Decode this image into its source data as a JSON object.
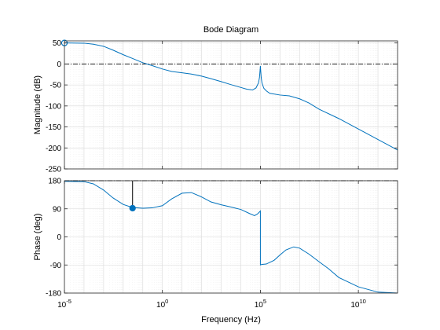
{
  "chart_data": {
    "type": "line",
    "title": "Bode Diagram",
    "xlabel": "Frequency  (Hz)",
    "x_scale": "log",
    "xlim": [
      1e-05,
      1000000000000.0
    ],
    "x_ticks": [
      {
        "value": 1e-05,
        "base": "10",
        "exp": "-5"
      },
      {
        "value": 1,
        "base": "10",
        "exp": "0"
      },
      {
        "value": 100000,
        "base": "10",
        "exp": "5"
      },
      {
        "value": 10000000000,
        "base": "10",
        "exp": "10"
      }
    ],
    "grid": true,
    "color": "#0072BD",
    "magnitude": {
      "ylabel": "Magnitude (dB)",
      "ylim": [
        -250,
        55
      ],
      "y_ticks": [
        "50",
        "0",
        "-50",
        "-100",
        "-150",
        "-200",
        "-250"
      ],
      "y_tick_values": [
        50,
        0,
        -50,
        -100,
        -150,
        -200,
        -250
      ],
      "reference_line": 0,
      "marker": {
        "x": 1e-05,
        "y": 50
      },
      "series": {
        "x": [
          1e-05,
          0.0001,
          0.0003,
          0.001,
          0.003,
          0.01,
          0.03,
          0.1,
          0.3,
          1,
          3,
          10,
          30,
          100,
          300,
          1000,
          3000,
          10000,
          20000,
          40000,
          60000,
          80000,
          90000,
          100000,
          110000,
          120000,
          150000,
          200000,
          300000,
          1000000,
          3000000,
          10000000,
          30000000,
          100000000,
          1000000000,
          10000000000,
          100000000000,
          1000000000000
        ],
        "y": [
          50,
          49.5,
          47,
          42,
          33,
          22,
          13,
          3,
          -4,
          -12,
          -18,
          -21,
          -24,
          -29,
          -35,
          -42,
          -49,
          -56,
          -60,
          -62,
          -57,
          -45,
          -32,
          -5,
          -32,
          -45,
          -58,
          -64,
          -70,
          -74,
          -76,
          -83,
          -93,
          -108,
          -130,
          -155,
          -180,
          -205
        ]
      }
    },
    "phase": {
      "ylabel": "Phase (deg)",
      "ylim": [
        -180,
        180
      ],
      "y_ticks": [
        "180",
        "90",
        "0",
        "-90",
        "-180"
      ],
      "y_tick_values": [
        180,
        90,
        0,
        -90,
        -180
      ],
      "reference_line": 180,
      "marker": {
        "x": 0.03,
        "y": 92,
        "stem_to": 180
      },
      "series": {
        "x": [
          1e-05,
          0.0001,
          0.0003,
          0.001,
          0.003,
          0.01,
          0.03,
          0.1,
          0.3,
          1,
          3,
          10,
          30,
          100,
          300,
          1000,
          3000,
          10000,
          30000,
          50000,
          70000,
          90000,
          100000,
          100001,
          120000,
          200000,
          500000,
          1000000,
          2000000,
          5000000,
          10000000,
          30000000,
          100000000,
          300000000,
          1000000000,
          10000000000,
          100000000000,
          1000000000000
        ],
        "y": [
          178,
          177,
          170,
          150,
          125,
          104,
          94,
          92,
          93,
          100,
          122,
          140,
          142,
          128,
          112,
          103,
          96,
          88,
          74,
          68,
          73,
          80,
          83,
          -90,
          -88,
          -87,
          -75,
          -58,
          -42,
          -32,
          -36,
          -55,
          -80,
          -102,
          -130,
          -160,
          -177,
          -180
        ]
      }
    }
  }
}
